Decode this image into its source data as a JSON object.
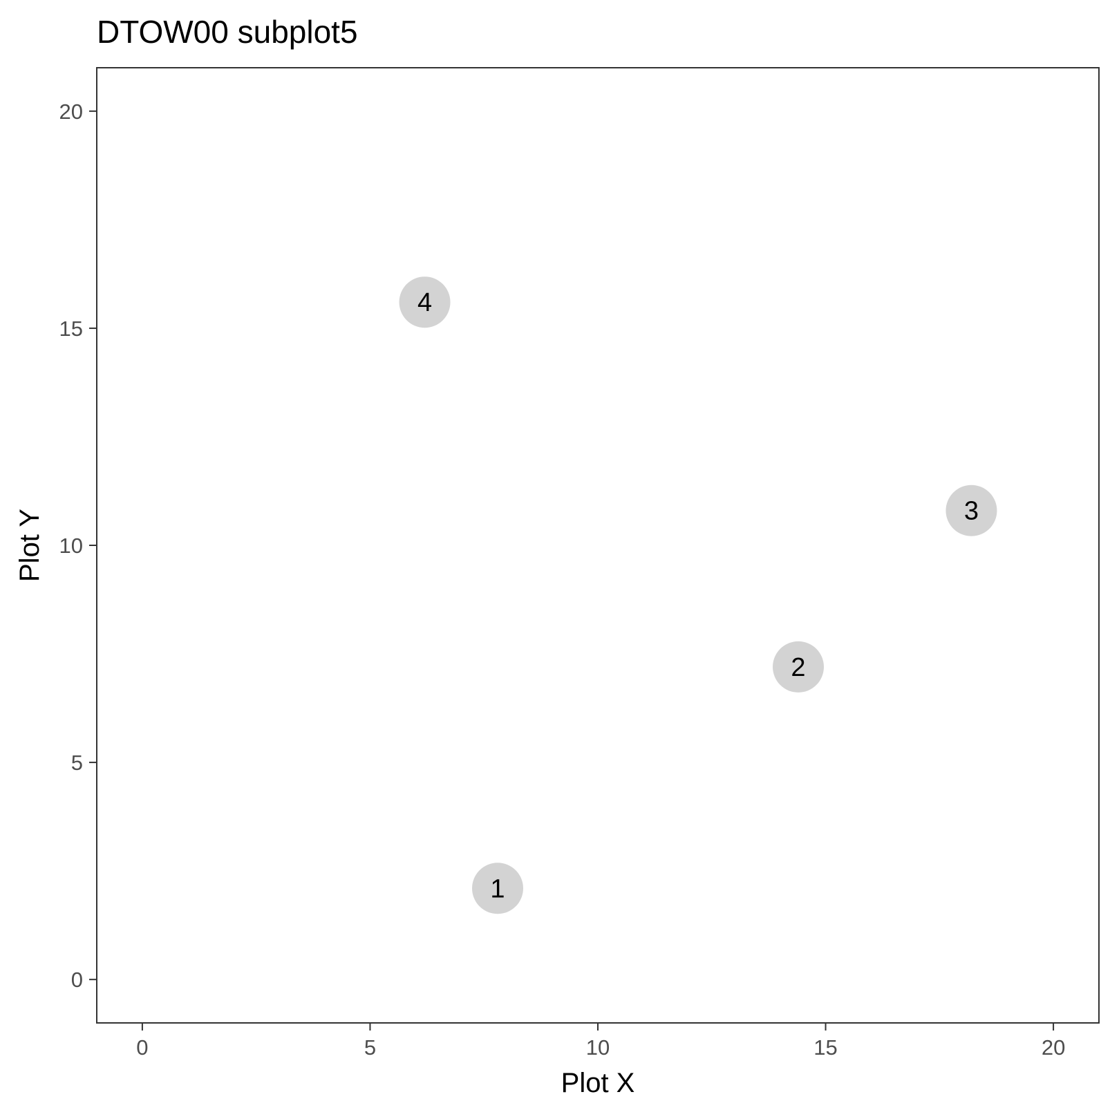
{
  "chart_data": {
    "type": "scatter",
    "title": "DTOW00 subplot5",
    "xlabel": "Plot X",
    "ylabel": "Plot Y",
    "xlim": [
      -1,
      21
    ],
    "ylim": [
      -1,
      21
    ],
    "xticks": [
      0,
      5,
      10,
      15,
      20
    ],
    "yticks": [
      0,
      5,
      10,
      15,
      20
    ],
    "grid": false,
    "point_color": "#d3d3d3",
    "points": [
      {
        "label": "1",
        "x": 7.8,
        "y": 2.1
      },
      {
        "label": "2",
        "x": 14.4,
        "y": 7.2
      },
      {
        "label": "3",
        "x": 18.2,
        "y": 10.8
      },
      {
        "label": "4",
        "x": 6.2,
        "y": 15.6
      }
    ]
  }
}
